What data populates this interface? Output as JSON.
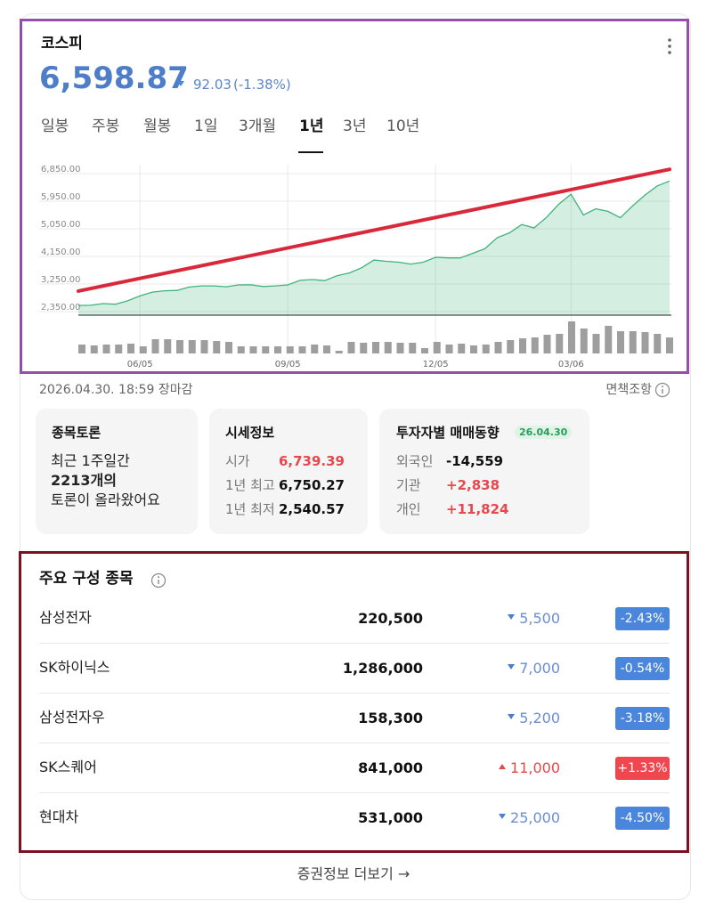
{
  "header": {
    "title": "코스피",
    "price": "6,598.87",
    "change": "92.03",
    "change_pct": "(-1.38%)",
    "direction": "down"
  },
  "tabs": {
    "items": [
      "일봉",
      "주봉",
      "월봉",
      "1일",
      "3개월",
      "1년",
      "3년",
      "10년"
    ],
    "active": 5
  },
  "chart_data": [
    {
      "type": "line",
      "categories": [
        null,
        null,
        null,
        null,
        null,
        "06/05",
        null,
        null,
        null,
        null,
        null,
        null,
        null,
        null,
        null,
        null,
        null,
        "09/05",
        null,
        null,
        null,
        null,
        null,
        null,
        null,
        null,
        null,
        null,
        null,
        "12/05",
        null,
        null,
        null,
        null,
        null,
        null,
        null,
        null,
        null,
        null,
        "03/06",
        null,
        null,
        null,
        null,
        null,
        null,
        null,
        null
      ],
      "series": [
        {
          "color": "#3fb27a",
          "values": [
            2550,
            2555,
            2610,
            2590,
            2700,
            2860,
            2985,
            3030,
            3040,
            3150,
            3190,
            3190,
            3160,
            3220,
            3225,
            3170,
            3190,
            3220,
            3370,
            3395,
            3360,
            3520,
            3610,
            3780,
            4030,
            3990,
            3960,
            3900,
            3960,
            4120,
            4100,
            4100,
            4250,
            4400,
            4760,
            4920,
            5190,
            5080,
            5420,
            5850,
            6180,
            5500,
            5700,
            5620,
            5410,
            5800,
            6150,
            6450,
            6610
          ]
        }
      ],
      "ylim": [
        2234,
        7140
      ],
      "yticks": [
        {
          "value": 2350,
          "label": "2,350.00"
        },
        {
          "value": 3250,
          "label": "3,250.00"
        },
        {
          "value": 4150,
          "label": "4,150.00"
        },
        {
          "value": 5050,
          "label": "5,050.00"
        },
        {
          "value": 5950,
          "label": "5,950.00"
        },
        {
          "value": 6850,
          "label": "6,850.00"
        }
      ],
      "grid": true,
      "trend_line": {
        "from": [
          0,
          3020
        ],
        "to": [
          48,
          6990
        ],
        "color": "#d8283a"
      }
    },
    {
      "type": "bar",
      "color": "#9e9e9e",
      "ylim": [
        0,
        40
      ],
      "values": [
        10,
        9,
        10,
        10,
        11,
        8,
        16,
        16,
        15,
        15,
        15,
        14,
        13,
        8,
        8,
        8,
        8,
        8,
        8,
        10,
        9,
        3,
        13,
        12,
        13,
        13,
        12,
        12,
        6,
        13,
        10,
        11,
        9,
        10,
        13,
        15,
        17,
        18,
        21,
        22,
        36,
        28,
        22,
        31,
        25,
        25,
        24,
        22,
        18
      ]
    }
  ],
  "status": {
    "date": "2026.04.30. 18:59 장마감",
    "disclaimer": "면책조항"
  },
  "cards": {
    "discussion": {
      "title": "종목토론",
      "lines": [
        "최근 1주일간",
        "2213개의",
        "토론이 올라왔어요"
      ]
    },
    "quote": {
      "title": "시세정보",
      "rows": [
        {
          "label": "시가",
          "value": "6,739.39",
          "color": "#e5484d"
        },
        {
          "label": "1년 최고",
          "value": "6,750.27",
          "color": "#111111"
        },
        {
          "label": "1년 최저",
          "value": "2,540.57",
          "color": "#111111"
        }
      ]
    },
    "investors": {
      "title": "투자자별 매매동향",
      "badge": "26.04.30",
      "rows": [
        {
          "label": "외국인",
          "value": "-14,559",
          "color": "#111111"
        },
        {
          "label": "기관",
          "value": "+2,838",
          "color": "#e5484d"
        },
        {
          "label": "개인",
          "value": "+11,824",
          "color": "#e5484d"
        }
      ]
    }
  },
  "constituents": {
    "title": "주요 구성 종목",
    "colors": {
      "up": "#f0464d",
      "down": "#4a86dc"
    },
    "rows": [
      {
        "name": "삼성전자",
        "price": "220,500",
        "change": "5,500",
        "change_pct": "-2.43%",
        "direction": "down"
      },
      {
        "name": "SK하이닉스",
        "price": "1,286,000",
        "change": "7,000",
        "change_pct": "-0.54%",
        "direction": "down"
      },
      {
        "name": "삼성전자우",
        "price": "158,300",
        "change": "5,200",
        "change_pct": "-3.18%",
        "direction": "down"
      },
      {
        "name": "SK스퀘어",
        "price": "841,000",
        "change": "11,000",
        "change_pct": "+1.33%",
        "direction": "up"
      },
      {
        "name": "현대차",
        "price": "531,000",
        "change": "25,000",
        "change_pct": "-4.50%",
        "direction": "down"
      }
    ]
  },
  "footer": {
    "link": "증권정보 더보기 →"
  }
}
